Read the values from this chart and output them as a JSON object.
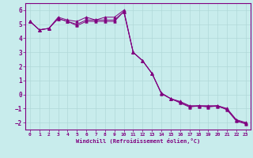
{
  "xlabel": "Windchill (Refroidissement éolien,°C)",
  "bg_color": "#c8ecec",
  "line_color": "#800080",
  "grid_color": "#b0d8d8",
  "axis_color": "#800080",
  "xlim": [
    -0.5,
    23.5
  ],
  "ylim": [
    -2.5,
    6.5
  ],
  "yticks": [
    -2,
    -1,
    0,
    1,
    2,
    3,
    4,
    5,
    6
  ],
  "xticks": [
    0,
    1,
    2,
    3,
    4,
    5,
    6,
    7,
    8,
    9,
    10,
    11,
    12,
    13,
    14,
    15,
    16,
    17,
    18,
    19,
    20,
    21,
    22,
    23
  ],
  "series1": [
    [
      0,
      5.2
    ],
    [
      1,
      4.6
    ],
    [
      2,
      4.7
    ],
    [
      3,
      5.4
    ],
    [
      4,
      5.2
    ],
    [
      5,
      4.9
    ],
    [
      6,
      5.2
    ],
    [
      7,
      5.2
    ],
    [
      8,
      5.2
    ],
    [
      9,
      5.2
    ],
    [
      10,
      5.9
    ],
    [
      11,
      3.0
    ],
    [
      12,
      2.4
    ],
    [
      13,
      1.5
    ],
    [
      14,
      0.1
    ],
    [
      15,
      -0.3
    ],
    [
      16,
      -0.5
    ],
    [
      17,
      -0.8
    ],
    [
      18,
      -0.8
    ],
    [
      19,
      -0.8
    ],
    [
      20,
      -0.8
    ],
    [
      21,
      -1.0
    ],
    [
      22,
      -1.8
    ],
    [
      23,
      -2.0
    ]
  ],
  "series2": [
    [
      0,
      5.2
    ],
    [
      1,
      4.6
    ],
    [
      2,
      4.7
    ],
    [
      3,
      5.4
    ],
    [
      4,
      5.2
    ],
    [
      5,
      5.0
    ],
    [
      6,
      5.3
    ],
    [
      7,
      5.3
    ],
    [
      8,
      5.3
    ],
    [
      9,
      5.3
    ],
    [
      10,
      5.9
    ],
    [
      11,
      3.0
    ],
    [
      12,
      2.4
    ],
    [
      13,
      1.5
    ],
    [
      14,
      0.05
    ],
    [
      15,
      -0.3
    ],
    [
      16,
      -0.55
    ],
    [
      17,
      -0.85
    ],
    [
      18,
      -0.85
    ],
    [
      19,
      -0.85
    ],
    [
      20,
      -0.85
    ],
    [
      21,
      -1.05
    ],
    [
      22,
      -1.85
    ],
    [
      23,
      -2.05
    ]
  ],
  "series3": [
    [
      0,
      5.2
    ],
    [
      1,
      4.6
    ],
    [
      2,
      4.7
    ],
    [
      3,
      5.5
    ],
    [
      4,
      5.3
    ],
    [
      5,
      5.2
    ],
    [
      6,
      5.5
    ],
    [
      7,
      5.3
    ],
    [
      8,
      5.5
    ],
    [
      9,
      5.5
    ],
    [
      10,
      6.0
    ],
    [
      11,
      3.0
    ],
    [
      12,
      2.4
    ],
    [
      13,
      1.5
    ],
    [
      14,
      0.1
    ],
    [
      15,
      -0.3
    ],
    [
      16,
      -0.6
    ],
    [
      17,
      -0.9
    ],
    [
      18,
      -0.8
    ],
    [
      19,
      -0.9
    ],
    [
      20,
      -0.8
    ],
    [
      21,
      -1.1
    ],
    [
      22,
      -1.9
    ],
    [
      23,
      -2.1
    ]
  ]
}
